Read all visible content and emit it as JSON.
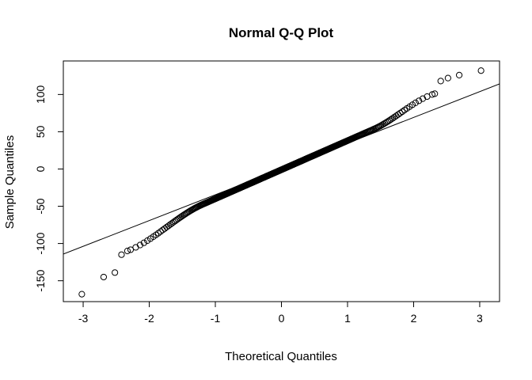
{
  "chart_data": {
    "type": "scatter",
    "title": "Normal Q-Q Plot",
    "xlabel": "Theoretical Quantiles",
    "ylabel": "Sample Quantiles",
    "xlim": [
      -3.3,
      3.3
    ],
    "ylim": [
      -178,
      145
    ],
    "x_ticks": [
      "-3",
      "-2",
      "-1",
      "0",
      "1",
      "2",
      "3"
    ],
    "y_ticks": [
      "-150",
      "-100",
      "-50",
      "0",
      "50",
      "100"
    ],
    "grid": false,
    "legend": "none",
    "point_style": "open-circle",
    "reference_line": {
      "slope": 34.6,
      "intercept": 0
    },
    "points": {
      "n": 400,
      "x_range": [
        -3.02,
        3.02
      ],
      "core_slope": 39.0,
      "core_intercept": -1.0,
      "tail": [
        [
          -3.02,
          -168
        ],
        [
          -2.69,
          -145
        ],
        [
          -2.52,
          -139
        ],
        [
          -2.42,
          -115
        ],
        [
          -2.33,
          -110
        ],
        [
          2.32,
          101
        ],
        [
          2.41,
          118
        ],
        [
          2.52,
          122
        ],
        [
          2.69,
          126
        ],
        [
          3.02,
          132
        ]
      ]
    },
    "colors": {
      "points": "#000000",
      "line": "#000000",
      "frame": "#000000"
    }
  }
}
